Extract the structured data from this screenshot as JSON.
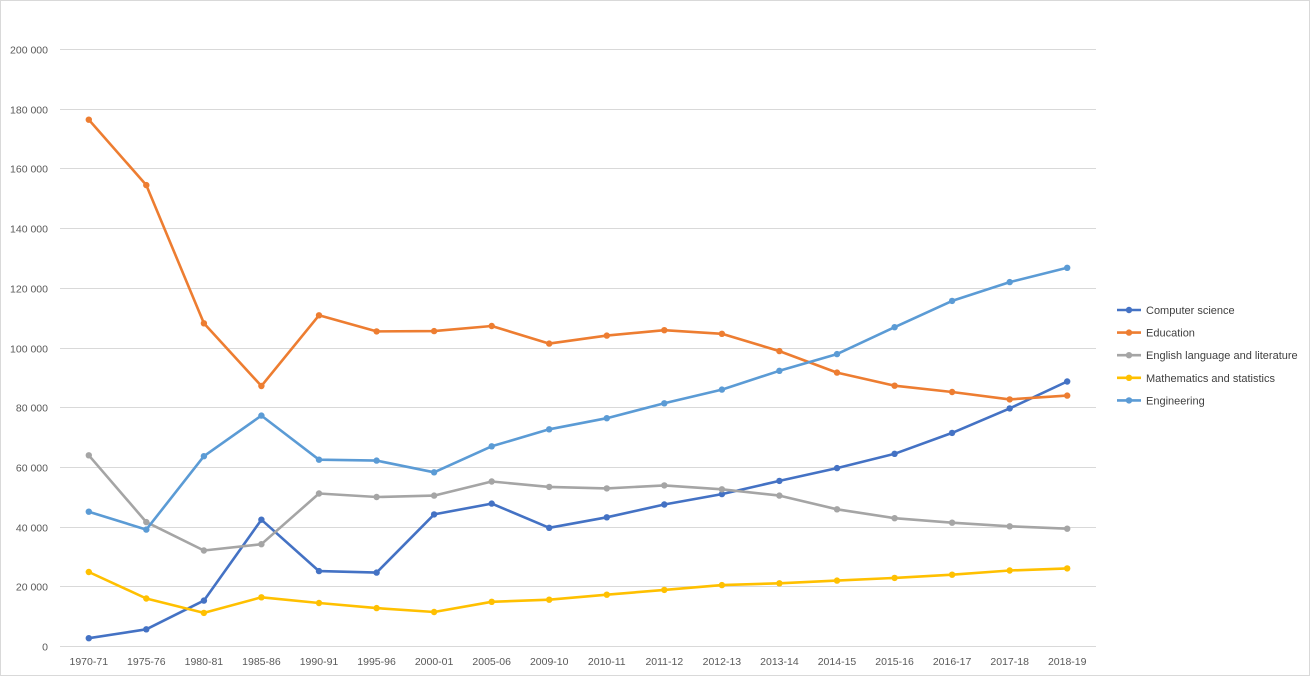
{
  "chart_data": {
    "type": "line",
    "title": "",
    "xlabel": "",
    "ylabel": "",
    "ylim": [
      0,
      200000
    ],
    "yticks": [
      0,
      20000,
      40000,
      60000,
      80000,
      100000,
      120000,
      140000,
      160000,
      180000,
      200000
    ],
    "ytick_labels": [
      "0",
      "20 000",
      "40 000",
      "60 000",
      "80 000",
      "100 000",
      "120 000",
      "140 000",
      "160 000",
      "180 000",
      "200 000"
    ],
    "grid": "horizontal",
    "legend_position": "right",
    "categories": [
      "1970-71",
      "1975-76",
      "1980-81",
      "1985-86",
      "1990-91",
      "1995-96",
      "2000-01",
      "2005-06",
      "2009-10",
      "2010-11",
      "2011-12",
      "2012-13",
      "2013-14",
      "2014-15",
      "2015-16",
      "2016-17",
      "2017-18",
      "2018-19"
    ],
    "series": [
      {
        "name": "Computer science",
        "color": "#4472c4",
        "values": [
          2600,
          5600,
          15200,
          42300,
          25100,
          24600,
          44100,
          47700,
          39600,
          43100,
          47400,
          50900,
          55300,
          59600,
          64400,
          71400,
          79600,
          88600
        ]
      },
      {
        "name": "Education",
        "color": "#ed7d31",
        "values": [
          176300,
          154400,
          108100,
          87100,
          110800,
          105400,
          105500,
          107200,
          101300,
          104000,
          105800,
          104600,
          98800,
          91600,
          87200,
          85100,
          82600,
          83900
        ]
      },
      {
        "name": "English language and literature",
        "color": "#a5a5a5",
        "values": [
          63900,
          41500,
          32000,
          34100,
          51100,
          49900,
          50400,
          55100,
          53300,
          52800,
          53800,
          52500,
          50400,
          45800,
          42800,
          41300,
          40100,
          39300
        ]
      },
      {
        "name": "Mathematics and statistics",
        "color": "#ffc000",
        "values": [
          24800,
          15900,
          11100,
          16300,
          14400,
          12700,
          11400,
          14800,
          15500,
          17200,
          18800,
          20400,
          21000,
          21900,
          22800,
          23900,
          25300,
          26000
        ]
      },
      {
        "name": "Engineering",
        "color": "#5b9bd5",
        "values": [
          45000,
          39000,
          63600,
          77200,
          62400,
          62100,
          58200,
          66900,
          72600,
          76300,
          81300,
          85900,
          92200,
          97800,
          106800,
          115600,
          121900,
          126700
        ]
      }
    ]
  }
}
